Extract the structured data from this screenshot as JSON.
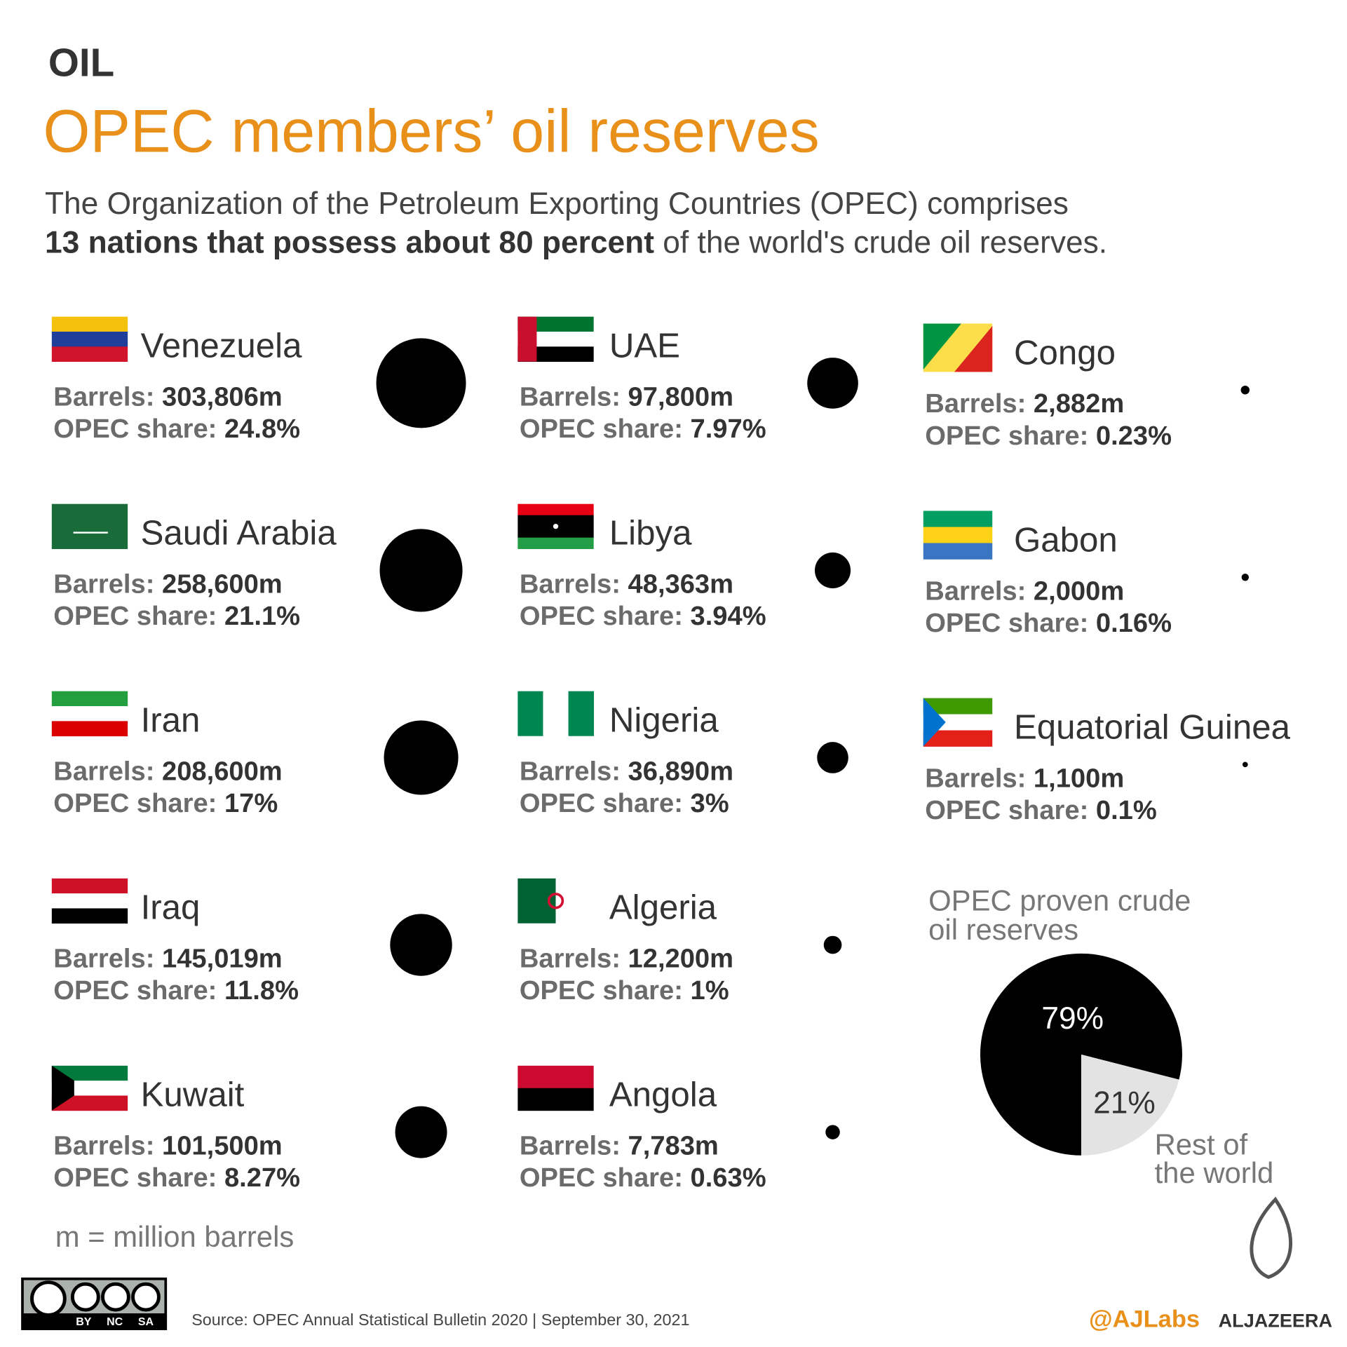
{
  "header": {
    "kicker": "OIL",
    "title": "OPEC members’ oil reserves",
    "intro_line1": "The Organization of the Petroleum Exporting Countries (OPEC) comprises",
    "intro_bold": "13 nations that possess about 80 percent",
    "intro_rest": "of the world's crude oil reserves."
  },
  "labels": {
    "barrels": "Barrels:",
    "share": "OPEC share:"
  },
  "countries": [
    {
      "name": "Venezuela",
      "barrels": 303806,
      "barrels_label": "303,806m",
      "share": 24.8,
      "share_label": "24.8%"
    },
    {
      "name": "Saudi Arabia",
      "barrels": 258600,
      "barrels_label": "258,600m",
      "share": 21.1,
      "share_label": "21.1%"
    },
    {
      "name": "Iran",
      "barrels": 208600,
      "barrels_label": "208,600m",
      "share": 17,
      "share_label": "17%"
    },
    {
      "name": "Iraq",
      "barrels": 145019,
      "barrels_label": "145,019m",
      "share": 11.8,
      "share_label": "11.8%"
    },
    {
      "name": "Kuwait",
      "barrels": 101500,
      "barrels_label": "101,500m",
      "share": 8.27,
      "share_label": "8.27%"
    },
    {
      "name": "UAE",
      "barrels": 97800,
      "barrels_label": "97,800m",
      "share": 7.97,
      "share_label": "7.97%"
    },
    {
      "name": "Libya",
      "barrels": 48363,
      "barrels_label": "48,363m",
      "share": 3.94,
      "share_label": "3.94%"
    },
    {
      "name": "Nigeria",
      "barrels": 36890,
      "barrels_label": "36,890m",
      "share": 3,
      "share_label": "3%"
    },
    {
      "name": "Algeria",
      "barrels": 12200,
      "barrels_label": "12,200m",
      "share": 1,
      "share_label": "1%"
    },
    {
      "name": "Angola",
      "barrels": 7783,
      "barrels_label": "7,783m",
      "share": 0.63,
      "share_label": "0.63%"
    },
    {
      "name": "Congo",
      "barrels": 2882,
      "barrels_label": "2,882m",
      "share": 0.23,
      "share_label": "0.23%"
    },
    {
      "name": "Gabon",
      "barrels": 2000,
      "barrels_label": "2,000m",
      "share": 0.16,
      "share_label": "0.16%"
    },
    {
      "name": "Equatorial Guinea",
      "barrels": 1100,
      "barrels_label": "1,100m",
      "share": 0.1,
      "share_label": "0.1%"
    }
  ],
  "pie": {
    "title_lines": [
      "OPEC proven crude",
      "oil reserves"
    ],
    "values": [
      79,
      21
    ],
    "value_labels": [
      "79%",
      "21%"
    ],
    "colors": [
      "#000000",
      "#e3e3e3"
    ],
    "rest_label_lines": [
      "Rest of",
      "the world"
    ]
  },
  "footnote": "m = million barrels",
  "source": "Source:  OPEC Annual Statistical Bulletin 2020 |  September 30, 2021",
  "license": [
    "BY",
    "NC",
    "SA"
  ],
  "handle": "@AJLabs",
  "brand": "ALJAZEERA"
}
